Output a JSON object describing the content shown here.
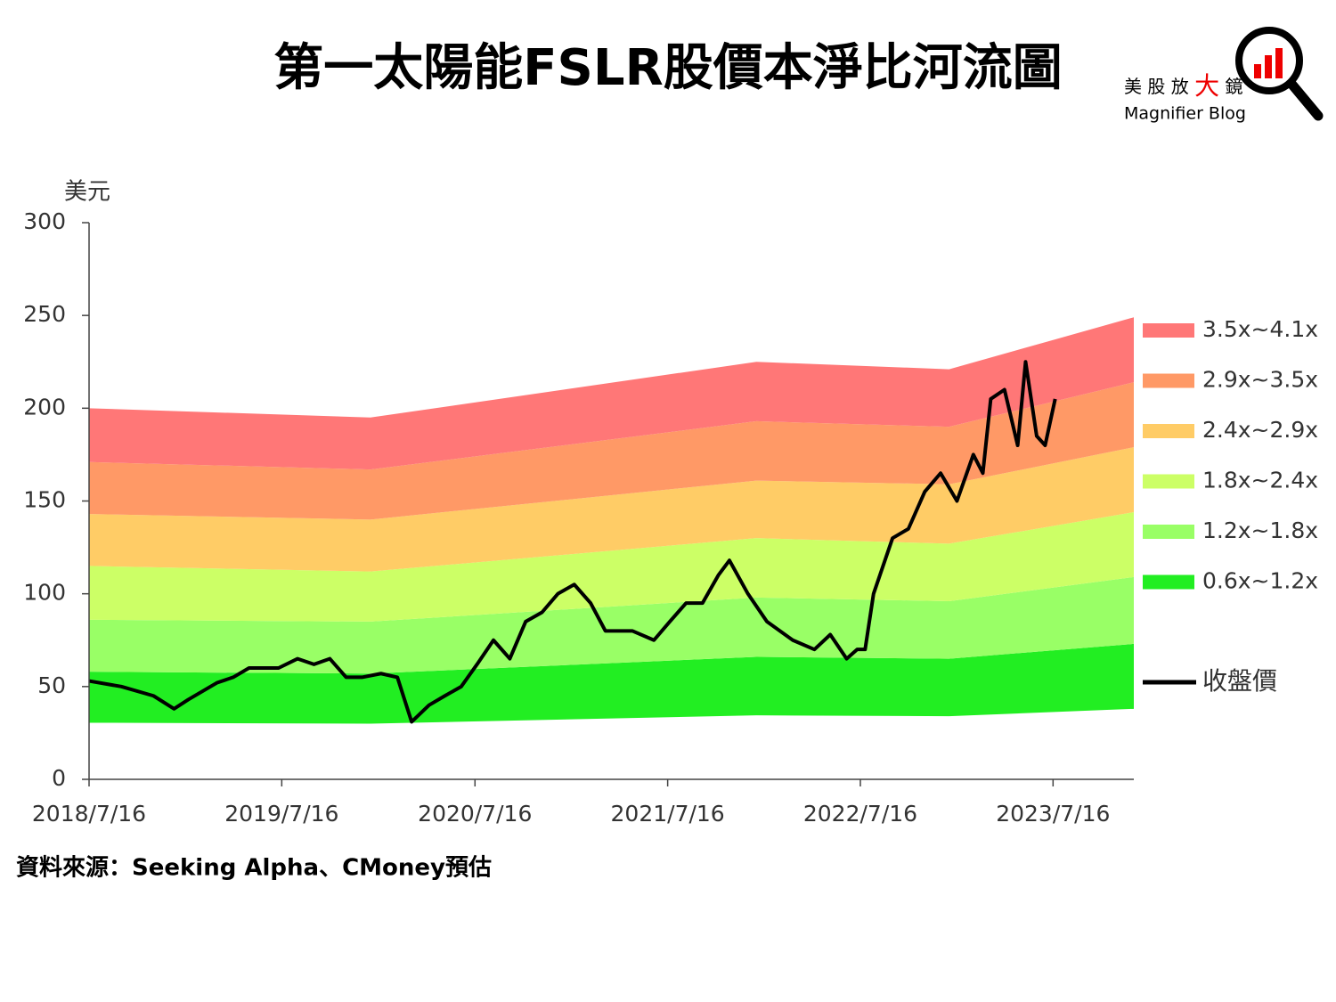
{
  "chart_data": {
    "type": "area",
    "stacked": true,
    "title": "第一太陽能FSLR股價本淨比河流圖",
    "y_label": "美元",
    "x": [
      "2018/7/16",
      "2019/12/31",
      "2021/12/31",
      "2022/12/31",
      "2023/12/16"
    ],
    "base": [
      30.5,
      30,
      34.5,
      34,
      38
    ],
    "series": [
      {
        "name": "0.6x~1.2x",
        "color": "#22ee22",
        "values": [
          27.5,
          27,
          31.5,
          31,
          35
        ]
      },
      {
        "name": "1.2x~1.8x",
        "color": "#99ff66",
        "values": [
          28,
          28,
          32,
          31,
          36
        ]
      },
      {
        "name": "1.8x~2.4x",
        "color": "#ccff66",
        "values": [
          29,
          27,
          32,
          31,
          35
        ]
      },
      {
        "name": "2.4x~2.9x",
        "color": "#ffcc66",
        "values": [
          28,
          28,
          31,
          32,
          35
        ]
      },
      {
        "name": "2.9x~3.5x",
        "color": "#ff9966",
        "values": [
          28,
          27,
          32,
          31,
          35
        ]
      },
      {
        "name": "3.5x~4.1x",
        "color": "#ff7777",
        "values": [
          29,
          28,
          32,
          31,
          35
        ]
      }
    ],
    "line": {
      "name": "收盤價",
      "color": "#000000",
      "x": [
        "2018/7/16",
        "2018/9/15",
        "2018/11/15",
        "2018/12/24",
        "2019/1/20",
        "2019/3/15",
        "2019/4/15",
        "2019/5/15",
        "2019/7/10",
        "2019/8/15",
        "2019/9/15",
        "2019/10/15",
        "2019/11/15",
        "2019/12/15",
        "2020/1/20",
        "2020/2/20",
        "2020/3/18",
        "2020/4/20",
        "2020/5/20",
        "2020/6/20",
        "2020/7/20",
        "2020/8/20",
        "2020/9/20",
        "2020/10/20",
        "2020/11/20",
        "2020/12/20",
        "2021/1/20",
        "2021/2/20",
        "2021/3/20",
        "2021/5/10",
        "2021/6/20",
        "2021/7/20",
        "2021/8/20",
        "2021/9/20",
        "2021/10/20",
        "2021/11/10",
        "2021/12/15",
        "2022/1/20",
        "2022/3/10",
        "2022/4/20",
        "2022/5/20",
        "2022/6/20",
        "2022/7/10",
        "2022/7/25",
        "2022/8/10",
        "2022/9/15",
        "2022/10/15",
        "2022/11/15",
        "2022/12/15",
        "2023/1/15",
        "2023/2/15",
        "2023/3/5",
        "2023/3/20",
        "2023/4/15",
        "2023/5/10",
        "2023/5/25",
        "2023/6/15",
        "2023/7/1",
        "2023/7/20"
      ],
      "values": [
        53,
        50,
        45,
        38,
        43,
        52,
        55,
        60,
        60,
        65,
        62,
        65,
        55,
        55,
        57,
        55,
        31,
        40,
        45,
        50,
        62,
        75,
        65,
        85,
        90,
        100,
        105,
        95,
        80,
        80,
        75,
        85,
        95,
        95,
        110,
        118,
        100,
        85,
        75,
        70,
        78,
        65,
        70,
        70,
        100,
        130,
        135,
        155,
        165,
        150,
        175,
        165,
        205,
        210,
        180,
        225,
        185,
        180,
        205
      ]
    },
    "xlim": [
      "2018/7/16",
      "2023/12/16"
    ],
    "xticks": [
      "2018/7/16",
      "2019/7/16",
      "2020/7/16",
      "2021/7/16",
      "2022/7/16",
      "2023/7/16"
    ],
    "ylim": [
      0,
      300
    ],
    "yticks": [
      0,
      50,
      100,
      150,
      200,
      250,
      300
    ]
  },
  "logo": {
    "parts": [
      "美 股 放 ",
      "大",
      " 鏡"
    ],
    "subtitle": "Magnifier Blog"
  },
  "source": "資料來源：Seeking Alpha、CMoney預估"
}
